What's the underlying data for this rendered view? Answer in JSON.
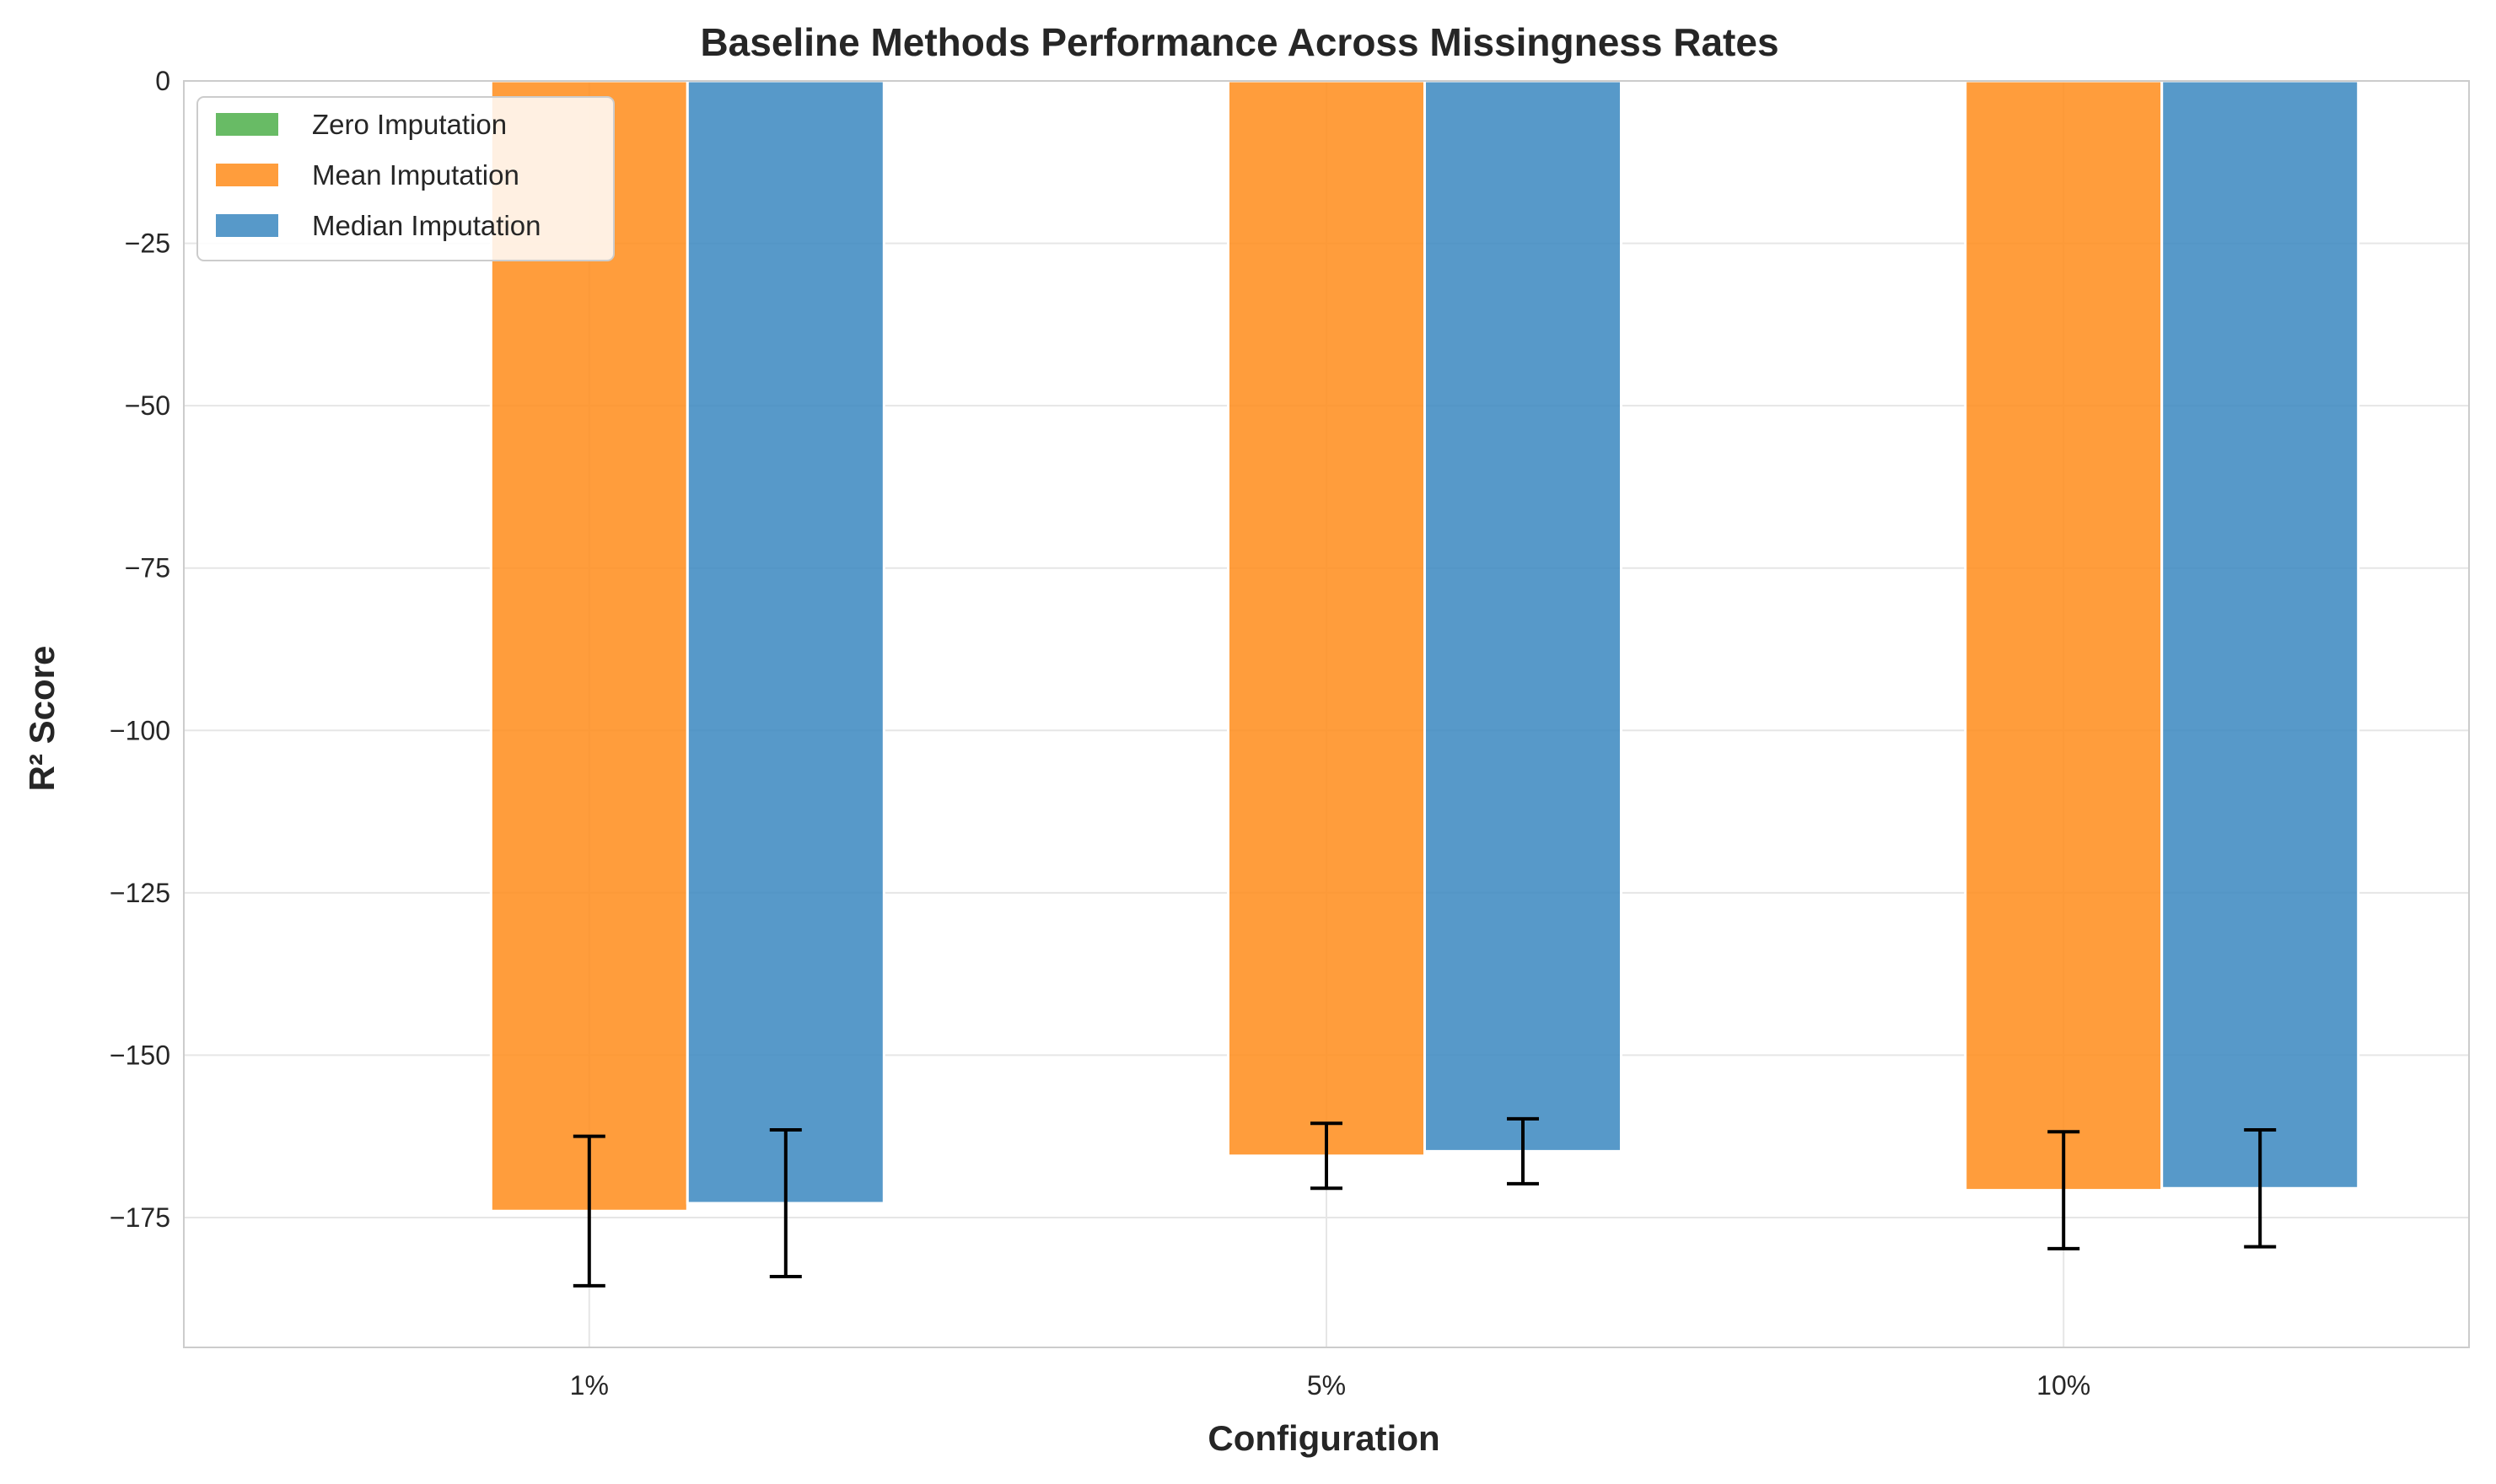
{
  "chart_data": {
    "type": "bar",
    "title": "Baseline Methods Performance Across Missingness Rates",
    "xlabel": "Configuration",
    "ylabel": "R² Score",
    "categories": [
      "1%",
      "5%",
      "10%"
    ],
    "ylim": [
      -195,
      0
    ],
    "yticks": [
      0,
      -25,
      -50,
      -75,
      -100,
      -125,
      -150,
      -175
    ],
    "ytick_labels": [
      "0",
      "−25",
      "−50",
      "−75",
      "−100",
      "−125",
      "−150",
      "−175"
    ],
    "grid": true,
    "legend_position": "top-left",
    "series": [
      {
        "name": "Zero Imputation",
        "color": "#4daf4a",
        "values": [
          0,
          0,
          0
        ],
        "errors": [
          0,
          0,
          0
        ]
      },
      {
        "name": "Mean Imputation",
        "color": "#ff8c1a",
        "values": [
          -174,
          -165.5,
          -170.8
        ],
        "errors": [
          11.5,
          5,
          9
        ]
      },
      {
        "name": "Median Imputation",
        "color": "#3a87c0",
        "values": [
          -172.8,
          -164.8,
          -170.5
        ],
        "errors": [
          11.3,
          5,
          9
        ]
      }
    ]
  }
}
